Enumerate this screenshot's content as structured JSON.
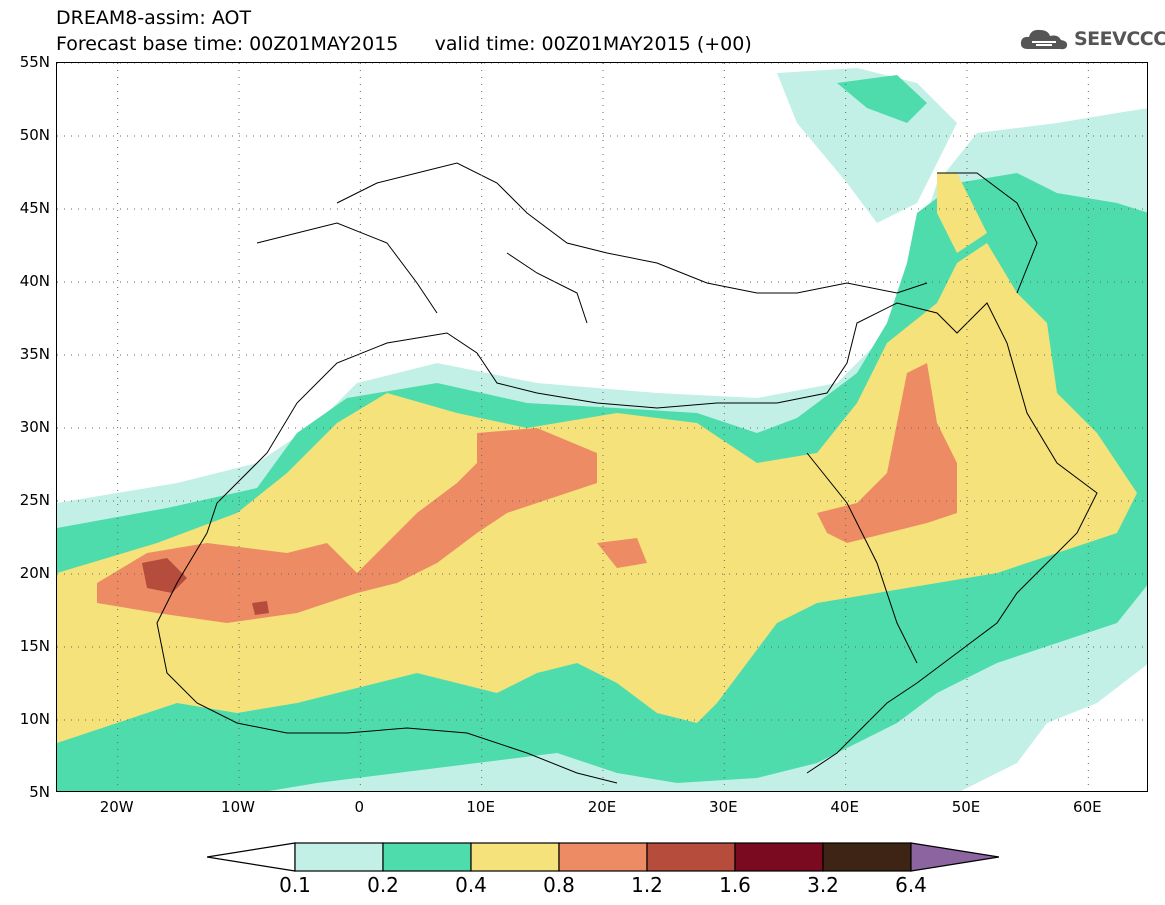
{
  "title": {
    "line1": "DREAM8-assim: AOT",
    "line2": "Forecast base time: 00Z01MAY2015      valid time: 00Z01MAY2015 (+00)"
  },
  "logo": {
    "text": "SEEVCCC",
    "icon": "cloud-logo-icon",
    "color": "#555555"
  },
  "map": {
    "lon_range": [
      -25,
      65
    ],
    "lat_range": [
      5,
      55
    ],
    "lat_labels": [
      "55N",
      "50N",
      "45N",
      "40N",
      "35N",
      "30N",
      "25N",
      "20N",
      "15N",
      "10N",
      "5N"
    ],
    "lon_labels": [
      "20W",
      "10W",
      "0",
      "10E",
      "20E",
      "30E",
      "40E",
      "50E",
      "60E"
    ],
    "lat_values": [
      55,
      50,
      45,
      40,
      35,
      30,
      25,
      20,
      15,
      10,
      5
    ],
    "lon_values": [
      -20,
      -10,
      0,
      10,
      20,
      30,
      40,
      50,
      60
    ],
    "grid": "dotted"
  },
  "colorbar": {
    "labels": [
      "0.1",
      "0.2",
      "0.4",
      "0.8",
      "1.2",
      "1.6",
      "3.2",
      "6.4"
    ],
    "colors": [
      "#ffffff",
      "#c2f0e6",
      "#4fdcac",
      "#f5e27a",
      "#ed8c64",
      "#b54c3c",
      "#7a0a20",
      "#3d2414",
      "#8c64a0"
    ]
  }
}
